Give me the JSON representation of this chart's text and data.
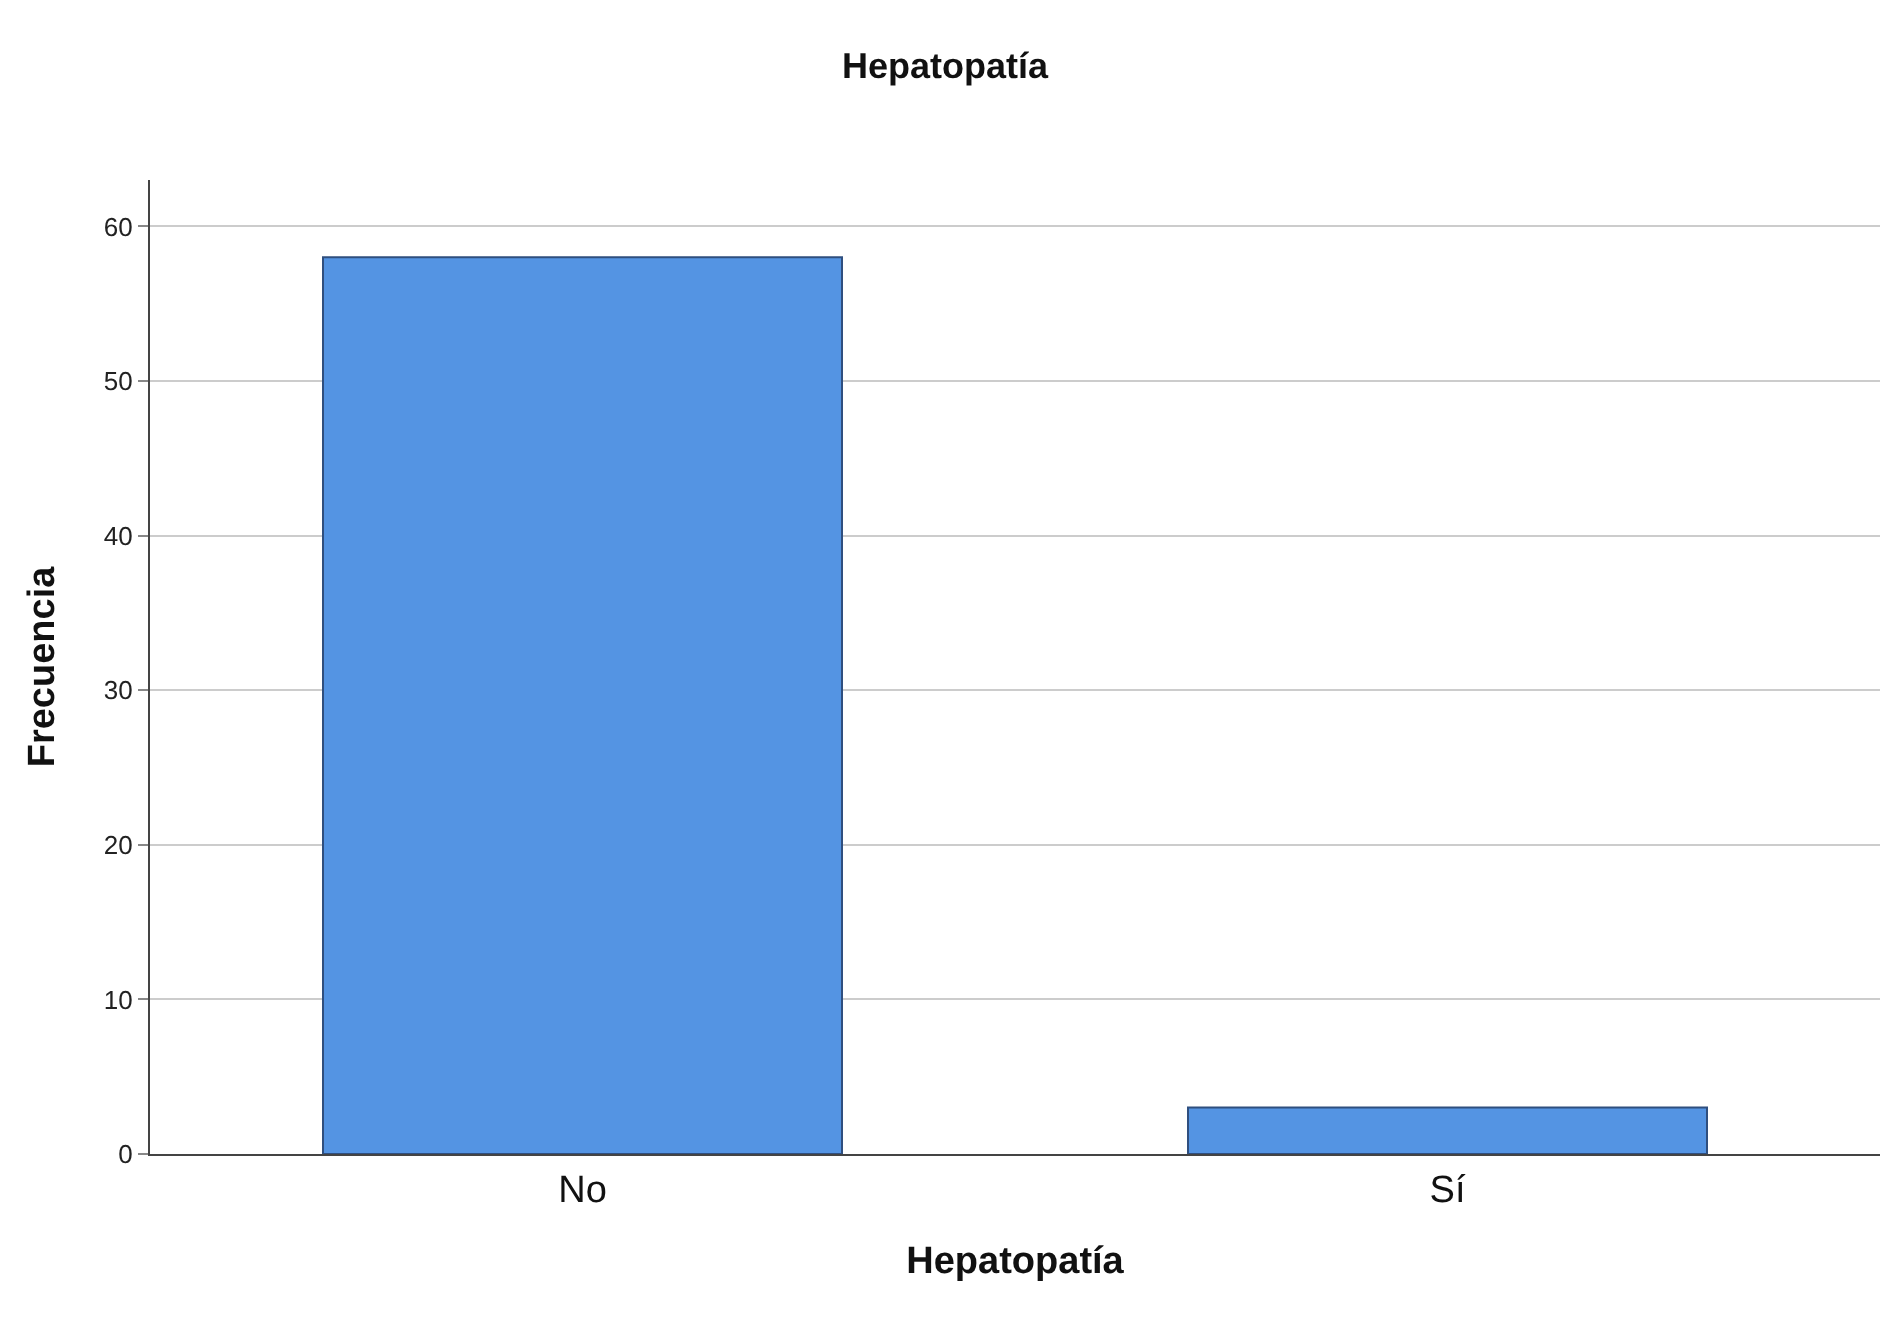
{
  "chart_data": {
    "type": "bar",
    "title": "Hepatopatía",
    "xlabel": "Hepatopatía",
    "ylabel": "Frecuencia",
    "categories": [
      "No",
      "Sí"
    ],
    "values": [
      58,
      3
    ],
    "color": "#5494e3",
    "ylim": [
      0,
      63
    ],
    "yticks": [
      0,
      10,
      20,
      30,
      40,
      50,
      60
    ],
    "grid": "y"
  }
}
